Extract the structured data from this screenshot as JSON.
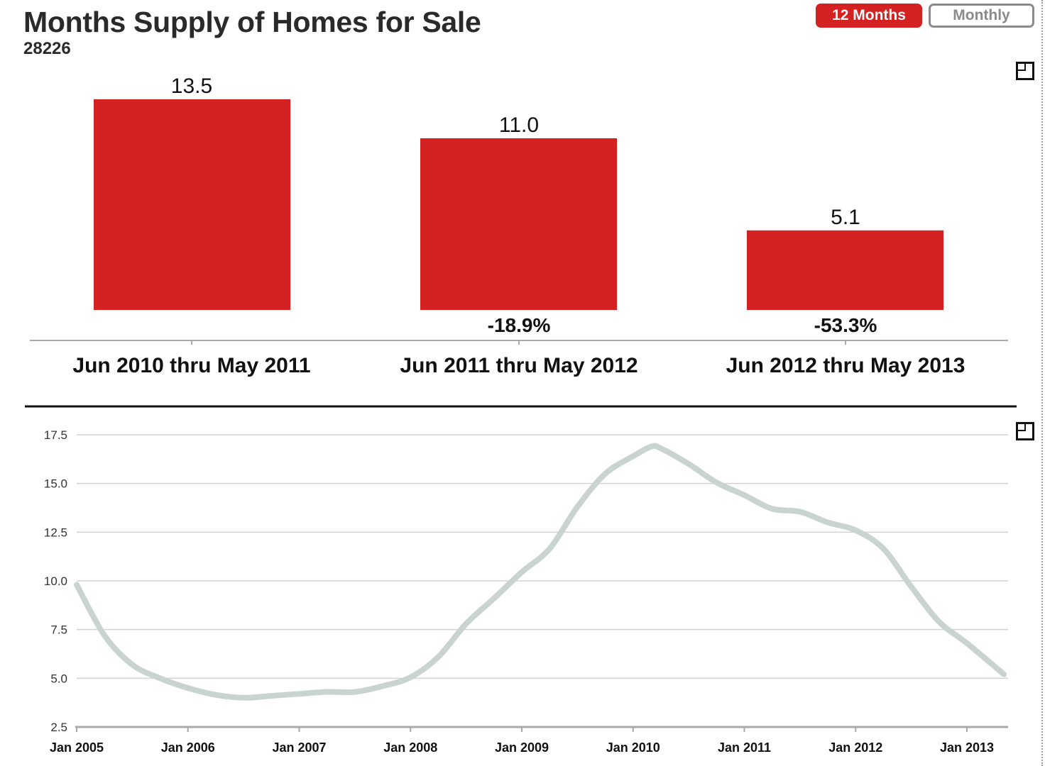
{
  "header": {
    "title": "Months Supply of Homes for Sale",
    "subtitle": "28226",
    "toggle": {
      "active": "12 Months",
      "inactive": "Monthly"
    }
  },
  "icons": {
    "expand": "expand-icon"
  },
  "colors": {
    "bar": "#d42222",
    "line": "#c9d3d0",
    "active_button": "#d42222"
  },
  "chart_data": [
    {
      "type": "bar",
      "categories": [
        "Jun 2010 thru May 2011",
        "Jun 2011 thru May 2012",
        "Jun 2012 thru May 2013"
      ],
      "values": [
        13.5,
        11.0,
        5.1
      ],
      "value_labels": [
        "13.5",
        "11.0",
        "5.1"
      ],
      "change_labels": [
        "",
        "-18.9%",
        "-53.3%"
      ],
      "ylim": [
        0,
        13.5
      ]
    },
    {
      "type": "line",
      "x": [
        "2005-01",
        "2005-04",
        "2005-07",
        "2005-10",
        "2006-01",
        "2006-04",
        "2006-07",
        "2006-10",
        "2007-01",
        "2007-04",
        "2007-07",
        "2007-10",
        "2008-01",
        "2008-04",
        "2008-07",
        "2008-10",
        "2009-01",
        "2009-04",
        "2009-07",
        "2009-10",
        "2010-01",
        "2010-03",
        "2010-04",
        "2010-07",
        "2010-10",
        "2011-01",
        "2011-04",
        "2011-07",
        "2011-10",
        "2012-01",
        "2012-04",
        "2012-07",
        "2012-10",
        "2013-01",
        "2013-05"
      ],
      "y": [
        9.8,
        7.2,
        5.7,
        5.0,
        4.5,
        4.15,
        4.0,
        4.1,
        4.2,
        4.3,
        4.3,
        4.6,
        5.05,
        6.1,
        7.8,
        9.1,
        10.45,
        11.65,
        13.8,
        15.5,
        16.4,
        16.9,
        16.8,
        16.0,
        15.05,
        14.4,
        13.7,
        13.55,
        13.0,
        12.6,
        11.65,
        9.7,
        7.9,
        6.8,
        5.2
      ],
      "ylim": [
        2.5,
        17.5
      ],
      "yticks": [
        "2.5",
        "5.0",
        "7.5",
        "10.0",
        "12.5",
        "15.0",
        "17.5"
      ],
      "xticks": [
        "Jan 2005",
        "Jan 2006",
        "Jan 2007",
        "Jan 2008",
        "Jan 2009",
        "Jan 2010",
        "Jan 2011",
        "Jan 2012",
        "Jan 2013"
      ],
      "grid": true
    }
  ]
}
